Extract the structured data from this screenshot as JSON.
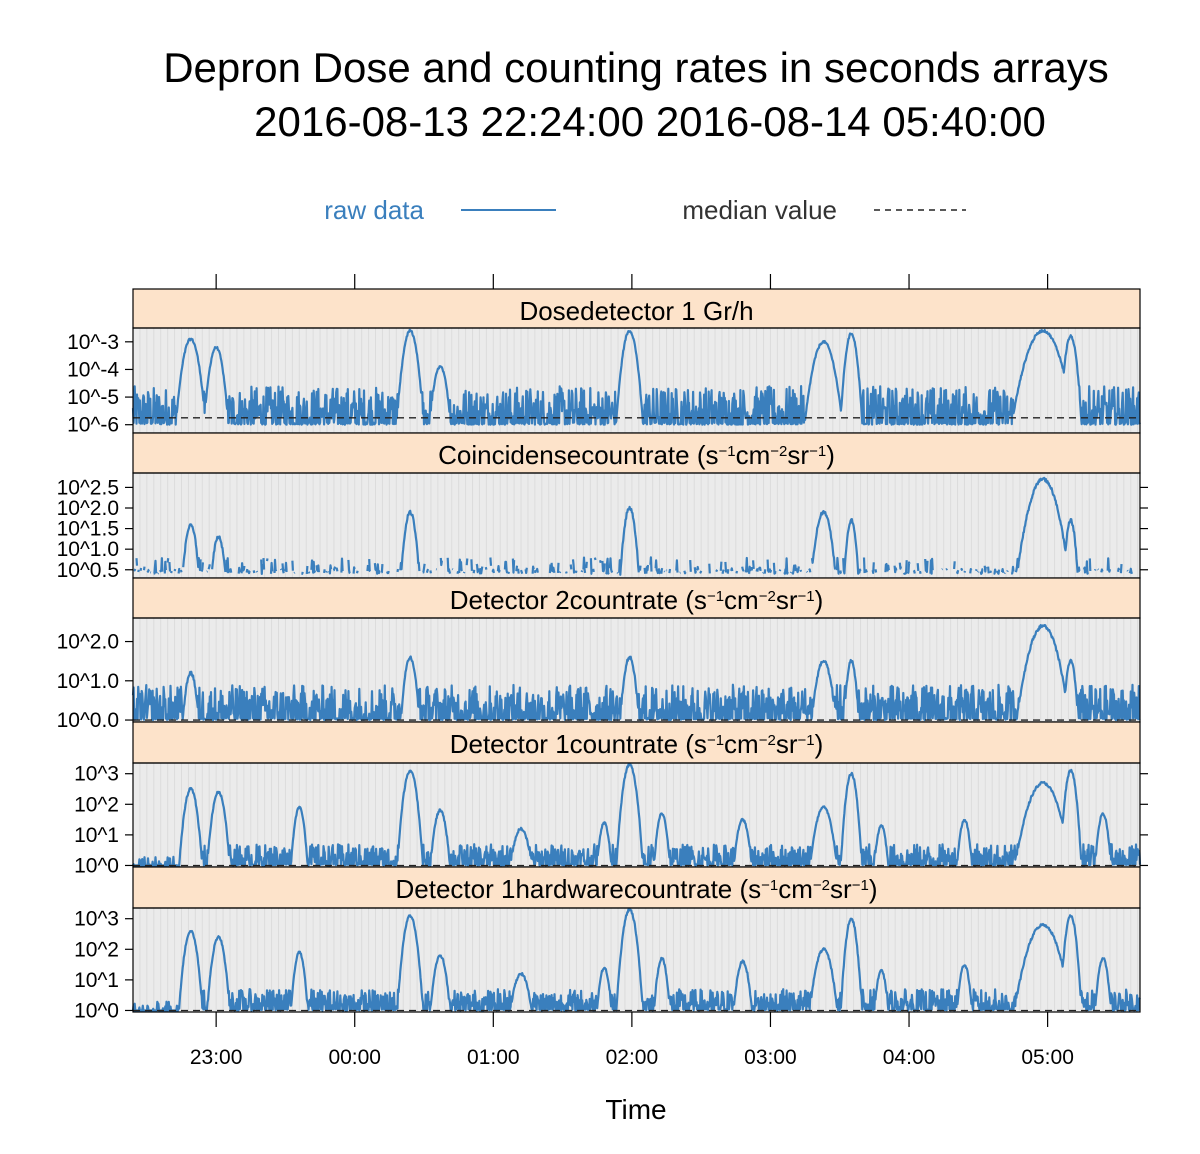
{
  "chart_data": {
    "type": "line",
    "title": "Depron Dose and counting rates in seconds arrays",
    "subtitle": "2016-08-13 22:24:00 2016-08-14 05:40:00",
    "xlabel": "Time",
    "x_range": [
      "2016-08-13 22:24",
      "2016-08-14 05:40"
    ],
    "x_ticks": [
      "23:00",
      "00:00",
      "01:00",
      "02:00",
      "03:00",
      "04:00",
      "05:00"
    ],
    "legend": {
      "placement": "top",
      "entries": [
        {
          "label": "raw data",
          "style": "solid",
          "color": "#3a7fbd"
        },
        {
          "label": "median value",
          "style": "dashed",
          "color": "#222222"
        }
      ]
    },
    "colors": {
      "raw": "#3a7fbd",
      "strip": "#fde3ca",
      "panel_bg": "#ebebeb",
      "median": "#222222"
    },
    "panels": [
      {
        "strip": "Dose detector 1 Gr/h",
        "scale": "log10",
        "ylim": [
          -6.3,
          -2.5
        ],
        "yticks": [
          -3,
          -4,
          -5,
          -6
        ],
        "ytick_labels": [
          "10^-3",
          "10^-4",
          "10^-5",
          "10^-6"
        ],
        "median": -5.75,
        "baseline": [
          -6.0,
          -4.6
        ],
        "peaks": [
          {
            "t": "22:49",
            "peak": -2.9,
            "w": 3.5
          },
          {
            "t": "23:00",
            "peak": -3.2,
            "w": 3.0
          },
          {
            "t": "00:24",
            "peak": -2.6,
            "w": 3.0
          },
          {
            "t": "00:37",
            "peak": -3.9,
            "w": 3.0
          },
          {
            "t": "01:59",
            "peak": -2.6,
            "w": 3.0
          },
          {
            "t": "03:23",
            "peak": -3.0,
            "w": 4.5
          },
          {
            "t": "03:35",
            "peak": -2.7,
            "w": 2.5
          },
          {
            "t": "04:58",
            "peak": -2.6,
            "w": 7.0
          },
          {
            "t": "05:10",
            "peak": -2.8,
            "w": 2.5
          }
        ]
      },
      {
        "strip": "Coincidense count rate (s^-1 cm^-2 sr^-1)",
        "scale": "log10",
        "ylim": [
          0.3,
          2.85
        ],
        "yticks": [
          0.5,
          1.0,
          1.5,
          2.0,
          2.5
        ],
        "ytick_labels": [
          "10^0.5",
          "10^1.0",
          "10^1.5",
          "10^2.0",
          "10^2.5"
        ],
        "median": null,
        "baseline": [
          0.4,
          0.8
        ],
        "peaks": [
          {
            "t": "22:49",
            "peak": 1.6,
            "w": 3.0
          },
          {
            "t": "23:01",
            "peak": 1.3,
            "w": 3.0
          },
          {
            "t": "00:24",
            "peak": 1.9,
            "w": 3.0
          },
          {
            "t": "01:59",
            "peak": 2.0,
            "w": 3.0
          },
          {
            "t": "03:23",
            "peak": 1.9,
            "w": 4.0
          },
          {
            "t": "03:35",
            "peak": 1.7,
            "w": 2.5
          },
          {
            "t": "04:58",
            "peak": 2.7,
            "w": 7.0
          },
          {
            "t": "05:10",
            "peak": 1.7,
            "w": 2.5
          }
        ]
      },
      {
        "strip": "Detector 2 count rate (s^-1 cm^-2 sr^-1)",
        "scale": "log10",
        "ylim": [
          -0.05,
          2.6
        ],
        "yticks": [
          0.0,
          1.0,
          2.0
        ],
        "ytick_labels": [
          "10^0.0",
          "10^1.0",
          "10^2.0"
        ],
        "median": 0.0,
        "baseline": [
          0.0,
          0.9
        ],
        "peaks": [
          {
            "t": "22:49",
            "peak": 1.2,
            "w": 3.0
          },
          {
            "t": "00:24",
            "peak": 1.6,
            "w": 3.0
          },
          {
            "t": "01:59",
            "peak": 1.6,
            "w": 3.0
          },
          {
            "t": "03:23",
            "peak": 1.5,
            "w": 4.0
          },
          {
            "t": "03:35",
            "peak": 1.5,
            "w": 2.5
          },
          {
            "t": "04:58",
            "peak": 2.4,
            "w": 7.0
          },
          {
            "t": "05:10",
            "peak": 1.5,
            "w": 2.5
          }
        ]
      },
      {
        "strip": "Detector 1 count rate (s^-1 cm^-2 sr^-1)",
        "scale": "log10",
        "ylim": [
          -0.05,
          3.35
        ],
        "yticks": [
          0,
          1,
          2,
          3
        ],
        "ytick_labels": [
          "10^0",
          "10^1",
          "10^2",
          "10^3"
        ],
        "median": 0.0,
        "baseline": [
          0.0,
          0.7
        ],
        "peaks": [
          {
            "t": "22:49",
            "peak": 2.5,
            "w": 3.0
          },
          {
            "t": "23:01",
            "peak": 2.4,
            "w": 3.0
          },
          {
            "t": "23:36",
            "peak": 1.9,
            "w": 2.5
          },
          {
            "t": "00:24",
            "peak": 3.1,
            "w": 3.0
          },
          {
            "t": "00:37",
            "peak": 1.8,
            "w": 3.0
          },
          {
            "t": "01:12",
            "peak": 1.2,
            "w": 4.0
          },
          {
            "t": "01:48",
            "peak": 1.4,
            "w": 2.5
          },
          {
            "t": "01:59",
            "peak": 3.3,
            "w": 3.0
          },
          {
            "t": "02:13",
            "peak": 1.7,
            "w": 2.5
          },
          {
            "t": "02:48",
            "peak": 1.5,
            "w": 3.0
          },
          {
            "t": "03:23",
            "peak": 1.9,
            "w": 4.0
          },
          {
            "t": "03:35",
            "peak": 3.0,
            "w": 2.5
          },
          {
            "t": "03:48",
            "peak": 1.3,
            "w": 2.5
          },
          {
            "t": "04:24",
            "peak": 1.5,
            "w": 2.5
          },
          {
            "t": "04:58",
            "peak": 2.7,
            "w": 7.0
          },
          {
            "t": "05:10",
            "peak": 3.1,
            "w": 2.5
          },
          {
            "t": "05:24",
            "peak": 1.7,
            "w": 2.5
          }
        ]
      },
      {
        "strip": "Detector 1 hardware count rate (s^-1 cm^-2 sr^-1)",
        "scale": "log10",
        "ylim": [
          -0.05,
          3.35
        ],
        "yticks": [
          0,
          1,
          2,
          3
        ],
        "ytick_labels": [
          "10^0",
          "10^1",
          "10^2",
          "10^3"
        ],
        "median": 0.0,
        "baseline": [
          0.0,
          0.7
        ],
        "peaks": [
          {
            "t": "22:49",
            "peak": 2.6,
            "w": 3.0
          },
          {
            "t": "23:01",
            "peak": 2.4,
            "w": 3.0
          },
          {
            "t": "23:36",
            "peak": 1.9,
            "w": 2.5
          },
          {
            "t": "00:24",
            "peak": 3.1,
            "w": 3.0
          },
          {
            "t": "00:37",
            "peak": 1.8,
            "w": 3.0
          },
          {
            "t": "01:12",
            "peak": 1.2,
            "w": 4.0
          },
          {
            "t": "01:48",
            "peak": 1.4,
            "w": 2.5
          },
          {
            "t": "01:59",
            "peak": 3.3,
            "w": 3.0
          },
          {
            "t": "02:13",
            "peak": 1.7,
            "w": 2.5
          },
          {
            "t": "02:48",
            "peak": 1.6,
            "w": 3.0
          },
          {
            "t": "03:23",
            "peak": 2.0,
            "w": 4.0
          },
          {
            "t": "03:35",
            "peak": 3.0,
            "w": 2.5
          },
          {
            "t": "03:48",
            "peak": 1.3,
            "w": 2.5
          },
          {
            "t": "04:24",
            "peak": 1.5,
            "w": 2.5
          },
          {
            "t": "04:58",
            "peak": 2.8,
            "w": 7.0
          },
          {
            "t": "05:10",
            "peak": 3.1,
            "w": 2.5
          },
          {
            "t": "05:24",
            "peak": 1.7,
            "w": 2.5
          }
        ]
      }
    ]
  }
}
